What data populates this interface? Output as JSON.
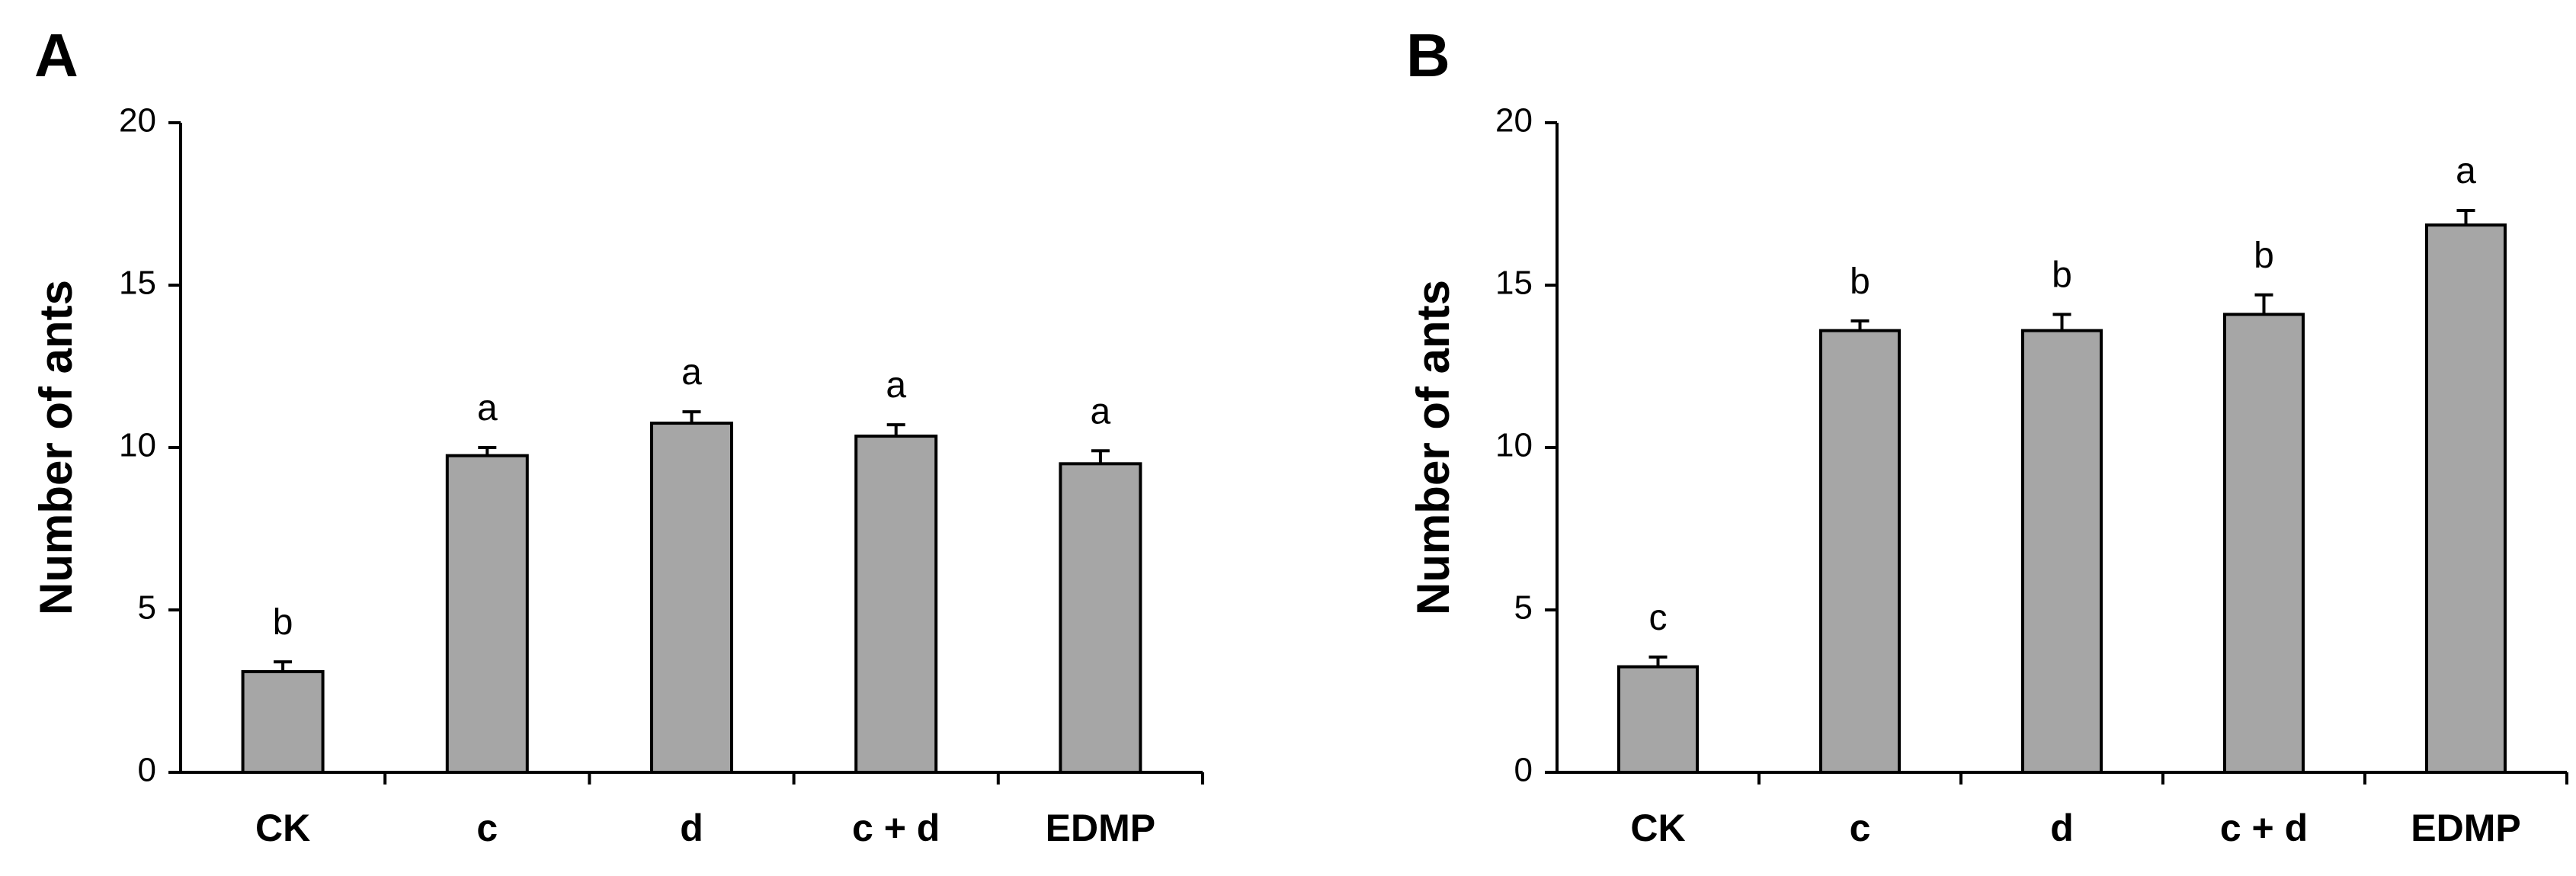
{
  "chart_data": [
    {
      "panel": "A",
      "type": "bar",
      "ylabel": "Number of ants",
      "xlabel": "",
      "ylim": [
        0,
        20
      ],
      "yticks": [
        0,
        5,
        10,
        15,
        20
      ],
      "categories": [
        "CK",
        "c",
        "d",
        "c + d",
        "EDMP"
      ],
      "values": [
        3.1,
        9.75,
        10.75,
        10.35,
        9.5
      ],
      "errors": [
        0.3,
        0.25,
        0.35,
        0.35,
        0.4
      ],
      "significance": [
        "b",
        "a",
        "a",
        "a",
        "a"
      ],
      "bar_color": "#a6a6a6"
    },
    {
      "panel": "B",
      "type": "bar",
      "ylabel": "Number of ants",
      "xlabel": "",
      "ylim": [
        0,
        20
      ],
      "yticks": [
        0,
        5,
        10,
        15,
        20
      ],
      "categories": [
        "CK",
        "c",
        "d",
        "c + d",
        "EDMP"
      ],
      "values": [
        3.25,
        13.6,
        13.6,
        14.1,
        16.85
      ],
      "errors": [
        0.3,
        0.3,
        0.5,
        0.6,
        0.45
      ],
      "significance": [
        "c",
        "b",
        "b",
        "b",
        "a"
      ],
      "bar_color": "#a6a6a6"
    }
  ]
}
